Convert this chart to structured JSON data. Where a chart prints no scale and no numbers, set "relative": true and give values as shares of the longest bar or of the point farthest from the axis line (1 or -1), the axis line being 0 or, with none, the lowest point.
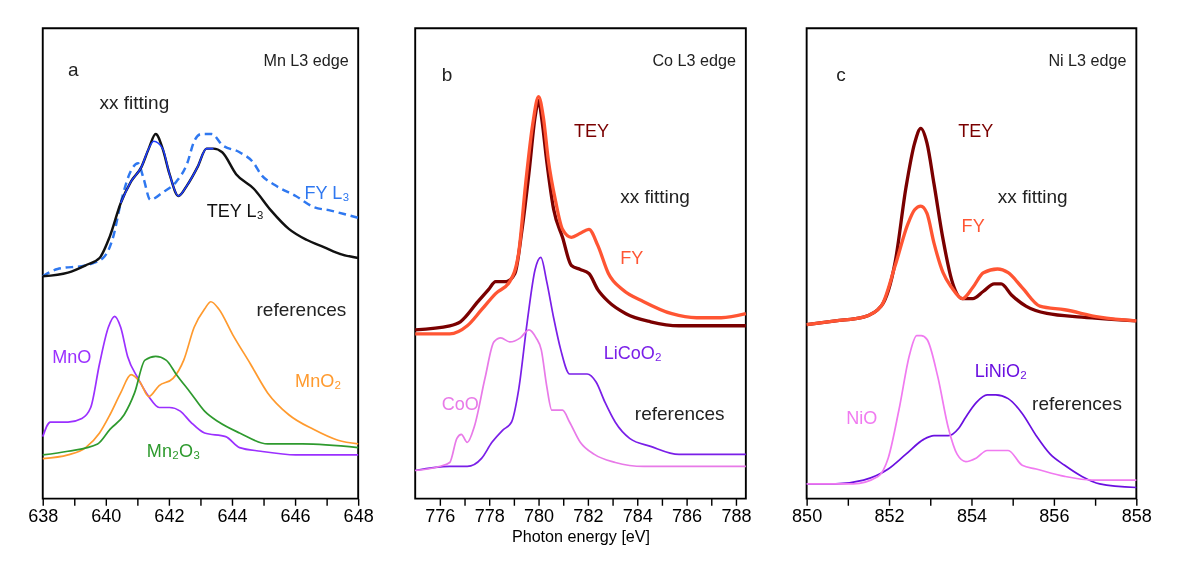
{
  "chart_data": [
    {
      "type": "line",
      "title": "Mn L3 edge",
      "relative": true,
      "grid": false,
      "annotations": [
        "a",
        "xx fitting",
        "references"
      ],
      "xlim": [
        638,
        648
      ],
      "xticks": [
        638,
        {
          "value": 639,
          "label": null
        },
        640,
        {
          "value": 641,
          "label": null
        },
        642,
        {
          "value": 643,
          "label": null
        },
        644,
        {
          "value": 645,
          "label": null
        },
        646,
        {
          "value": 647,
          "label": null
        },
        648
      ],
      "series": [
        {
          "name": "FY L₃",
          "color": "#2f78f0",
          "line_style": "dashed",
          "x": [
            638.0,
            638.47,
            639.36,
            639.91,
            640.24,
            640.47,
            640.8,
            641.02,
            641.19,
            641.41,
            641.8,
            642.24,
            642.58,
            642.8,
            643.02,
            643.36,
            643.69,
            644.24,
            644.69,
            644.91,
            645.36,
            646.02,
            646.58,
            647.13,
            647.58,
            648.0
          ],
          "values": [
            0.61,
            0.63,
            0.64,
            0.66,
            0.72,
            0.81,
            0.9,
            0.92,
            0.88,
            0.82,
            0.84,
            0.87,
            0.92,
            0.98,
            1.0,
            1.0,
            0.97,
            0.95,
            0.92,
            0.89,
            0.86,
            0.83,
            0.8,
            0.79,
            0.78,
            0.77
          ]
        },
        {
          "name": "TEY L₃",
          "color": "#111111",
          "x": [
            638.0,
            638.8,
            639.36,
            639.8,
            640.13,
            640.47,
            640.8,
            641.13,
            641.36,
            641.58,
            641.8,
            642.02,
            642.3,
            642.58,
            642.91,
            643.19,
            643.41,
            643.69,
            644.13,
            644.69,
            645.24,
            645.8,
            646.36,
            646.91,
            647.47,
            648.0
          ],
          "values": [
            0.61,
            0.62,
            0.64,
            0.66,
            0.72,
            0.81,
            0.87,
            0.91,
            0.96,
            1.0,
            0.96,
            0.89,
            0.83,
            0.86,
            0.91,
            0.96,
            0.96,
            0.95,
            0.89,
            0.85,
            0.79,
            0.74,
            0.71,
            0.69,
            0.67,
            0.66
          ]
        },
        {
          "name": null,
          "color": "#1f3fff",
          "x": [
            640.47,
            640.8,
            641.13,
            641.36,
            641.52,
            641.8,
            642.02,
            642.3,
            642.58,
            642.91,
            643.19,
            643.41
          ],
          "values": [
            0.81,
            0.87,
            0.91,
            0.96,
            0.98,
            0.96,
            0.89,
            0.83,
            0.86,
            0.91,
            0.96,
            0.96
          ]
        },
        {
          "name": "MnO",
          "color": "#9b30ff",
          "x": [
            638.0,
            638.24,
            638.8,
            639.24,
            639.52,
            639.8,
            640.08,
            640.28,
            640.47,
            640.69,
            641.02,
            641.36,
            641.69,
            642.02,
            642.36,
            642.69,
            643.13,
            643.8,
            644.24,
            644.91,
            646.02,
            648.0
          ],
          "values": [
            0.17,
            0.21,
            0.21,
            0.22,
            0.25,
            0.37,
            0.47,
            0.5,
            0.47,
            0.39,
            0.33,
            0.28,
            0.25,
            0.25,
            0.24,
            0.21,
            0.18,
            0.17,
            0.14,
            0.13,
            0.12,
            0.12
          ]
        },
        {
          "name": "MnO₂",
          "color": "#ff9a2e",
          "x": [
            638.0,
            638.8,
            639.36,
            639.8,
            640.13,
            640.47,
            640.8,
            641.08,
            641.36,
            641.69,
            642.13,
            642.47,
            642.8,
            643.13,
            643.33,
            643.58,
            644.02,
            644.58,
            645.13,
            645.8,
            646.58,
            647.36,
            648.0
          ],
          "values": [
            0.11,
            0.12,
            0.14,
            0.18,
            0.23,
            0.29,
            0.34,
            0.32,
            0.28,
            0.31,
            0.33,
            0.38,
            0.47,
            0.52,
            0.54,
            0.52,
            0.45,
            0.37,
            0.29,
            0.23,
            0.19,
            0.16,
            0.15
          ]
        },
        {
          "name": "Mn₂O₃",
          "color": "#2e9a2e",
          "x": [
            638.0,
            638.8,
            639.74,
            640.13,
            640.58,
            640.91,
            641.24,
            641.58,
            641.91,
            642.24,
            642.69,
            643.13,
            643.58,
            644.24,
            645.13,
            646.24,
            648.0
          ],
          "values": [
            0.12,
            0.13,
            0.15,
            0.19,
            0.23,
            0.29,
            0.38,
            0.39,
            0.38,
            0.34,
            0.29,
            0.24,
            0.21,
            0.18,
            0.15,
            0.15,
            0.14
          ]
        }
      ]
    },
    {
      "type": "line",
      "title": "Co L3 edge",
      "xlabel": "Photon energy [eV]",
      "relative": true,
      "grid": false,
      "annotations": [
        "b",
        "xx fitting",
        "references"
      ],
      "xlim": [
        775,
        788.4
      ],
      "xticks": [
        776,
        {
          "value": 777,
          "label": null
        },
        778,
        {
          "value": 779,
          "label": null
        },
        780,
        {
          "value": 781,
          "label": null
        },
        782,
        {
          "value": 783,
          "label": null
        },
        784,
        {
          "value": 785,
          "label": null
        },
        786,
        {
          "value": 787,
          "label": null
        },
        788
      ],
      "series": [
        {
          "name": "TEY",
          "color": "#7a0000",
          "x": [
            775.0,
            776.4,
            776.83,
            777.54,
            777.97,
            778.26,
            778.69,
            779.04,
            779.33,
            779.61,
            779.86,
            780.0,
            780.14,
            780.33,
            780.61,
            780.97,
            781.33,
            781.69,
            782.04,
            782.4,
            782.83,
            783.54,
            784.54,
            785.69,
            788.4
          ],
          "values": [
            0.42,
            0.43,
            0.44,
            0.49,
            0.52,
            0.54,
            0.54,
            0.56,
            0.67,
            0.81,
            0.95,
            0.99,
            0.94,
            0.84,
            0.72,
            0.65,
            0.58,
            0.57,
            0.56,
            0.52,
            0.49,
            0.46,
            0.44,
            0.43,
            0.43
          ]
        },
        {
          "name": "FY",
          "color": "#ff5533",
          "x": [
            775.0,
            776.4,
            777.11,
            777.69,
            778.26,
            778.83,
            779.19,
            779.47,
            779.76,
            780.0,
            780.19,
            780.4,
            780.69,
            780.97,
            781.33,
            781.69,
            782.04,
            782.4,
            782.83,
            783.4,
            784.26,
            785.4,
            786.4,
            787.4,
            788.4
          ],
          "values": [
            0.41,
            0.41,
            0.43,
            0.47,
            0.51,
            0.54,
            0.61,
            0.78,
            0.93,
            1.0,
            0.95,
            0.84,
            0.74,
            0.67,
            0.65,
            0.66,
            0.67,
            0.63,
            0.56,
            0.52,
            0.49,
            0.46,
            0.45,
            0.45,
            0.46
          ]
        },
        {
          "name": "LiCoO₂",
          "color": "#7a1fe8",
          "x": [
            775.0,
            776.4,
            777.11,
            777.69,
            778.11,
            778.54,
            778.9,
            779.19,
            779.54,
            779.86,
            780.09,
            780.33,
            780.61,
            780.9,
            781.26,
            781.69,
            781.97,
            782.33,
            782.69,
            783.11,
            783.69,
            784.54,
            785.69,
            787.11,
            788.4
          ],
          "values": [
            0.07,
            0.08,
            0.08,
            0.1,
            0.14,
            0.17,
            0.19,
            0.27,
            0.44,
            0.57,
            0.6,
            0.54,
            0.45,
            0.37,
            0.31,
            0.31,
            0.31,
            0.29,
            0.24,
            0.19,
            0.15,
            0.13,
            0.11,
            0.11,
            0.11
          ]
        },
        {
          "name": "CoO",
          "color": "#e87ae8",
          "x": [
            775.0,
            775.97,
            776.4,
            776.69,
            776.87,
            777.11,
            777.4,
            777.83,
            778.19,
            778.47,
            778.83,
            779.26,
            779.61,
            779.9,
            780.11,
            780.33,
            780.54,
            780.97,
            781.26,
            781.69,
            782.26,
            783.11,
            784.26,
            785.69,
            787.11,
            788.4
          ],
          "values": [
            0.07,
            0.08,
            0.09,
            0.15,
            0.16,
            0.14,
            0.18,
            0.3,
            0.39,
            0.4,
            0.39,
            0.4,
            0.42,
            0.4,
            0.37,
            0.28,
            0.22,
            0.22,
            0.19,
            0.14,
            0.11,
            0.09,
            0.08,
            0.08,
            0.08,
            0.08
          ]
        }
      ]
    },
    {
      "type": "line",
      "title": "Ni L3 edge",
      "relative": true,
      "grid": false,
      "annotations": [
        "c",
        "xx fitting",
        "references"
      ],
      "xlim": [
        850,
        858
      ],
      "xticks": [
        850,
        {
          "value": 851,
          "label": null
        },
        852,
        {
          "value": 853,
          "label": null
        },
        854,
        {
          "value": 855,
          "label": null
        },
        856,
        {
          "value": 857,
          "label": null
        },
        858
      ],
      "series": [
        {
          "name": "TEY",
          "color": "#7a0000",
          "x": [
            850.0,
            850.7,
            851.38,
            851.81,
            852.15,
            852.41,
            852.62,
            852.77,
            852.92,
            853.09,
            853.31,
            853.52,
            853.78,
            854.03,
            854.29,
            854.55,
            854.72,
            854.97,
            855.32,
            855.83,
            856.68,
            858.0
          ],
          "values": [
            0.47,
            0.48,
            0.49,
            0.52,
            0.64,
            0.84,
            0.96,
            1.0,
            0.96,
            0.85,
            0.7,
            0.59,
            0.54,
            0.54,
            0.56,
            0.58,
            0.58,
            0.55,
            0.52,
            0.5,
            0.49,
            0.48
          ]
        },
        {
          "name": "FY",
          "color": "#ff5533",
          "x": [
            850.0,
            850.7,
            851.38,
            851.81,
            852.15,
            852.45,
            852.62,
            852.77,
            852.92,
            853.09,
            853.31,
            853.52,
            853.78,
            854.03,
            854.29,
            854.63,
            854.89,
            855.23,
            855.66,
            856.26,
            857.11,
            858.0
          ],
          "values": [
            0.47,
            0.48,
            0.49,
            0.52,
            0.63,
            0.74,
            0.78,
            0.79,
            0.77,
            0.69,
            0.61,
            0.57,
            0.54,
            0.57,
            0.61,
            0.62,
            0.61,
            0.57,
            0.52,
            0.51,
            0.49,
            0.48
          ]
        },
        {
          "name": "LiNiO₂",
          "color": "#6a10e0",
          "x": [
            850.0,
            850.7,
            851.38,
            851.98,
            852.41,
            852.84,
            853.09,
            853.44,
            853.69,
            853.86,
            854.12,
            854.38,
            854.59,
            854.89,
            855.23,
            855.57,
            855.91,
            856.26,
            856.68,
            857.11,
            858.0
          ],
          "values": [
            0.04,
            0.04,
            0.05,
            0.08,
            0.12,
            0.16,
            0.17,
            0.17,
            0.19,
            0.22,
            0.26,
            0.28,
            0.28,
            0.27,
            0.23,
            0.17,
            0.12,
            0.09,
            0.06,
            0.04,
            0.03
          ]
        },
        {
          "name": "NiO",
          "color": "#f07af0",
          "x": [
            850.0,
            851.13,
            851.73,
            851.98,
            852.24,
            852.5,
            852.67,
            852.78,
            852.92,
            853.18,
            853.44,
            853.65,
            853.86,
            854.12,
            854.38,
            854.63,
            854.89,
            855.23,
            855.57,
            856.26,
            856.94,
            858.0
          ],
          "values": [
            0.04,
            0.04,
            0.06,
            0.11,
            0.24,
            0.39,
            0.44,
            0.44,
            0.43,
            0.33,
            0.19,
            0.12,
            0.1,
            0.11,
            0.13,
            0.13,
            0.13,
            0.09,
            0.08,
            0.06,
            0.05,
            0.05
          ]
        }
      ]
    }
  ]
}
